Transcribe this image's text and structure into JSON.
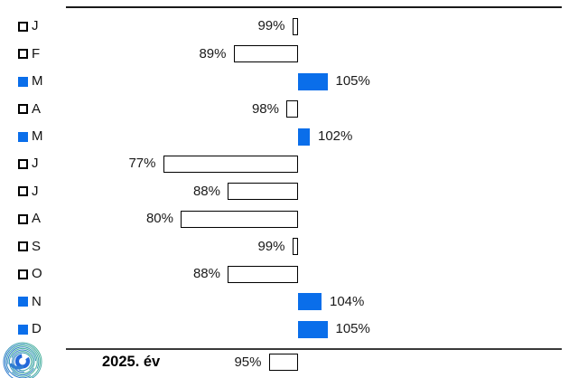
{
  "chart_data": {
    "type": "bar",
    "orientation": "horizontal",
    "baseline_value": 100,
    "unit": "%",
    "categories": [
      "J",
      "F",
      "M",
      "A",
      "M",
      "J",
      "J",
      "A",
      "S",
      "O",
      "N",
      "D"
    ],
    "values": [
      99,
      89,
      105,
      98,
      102,
      77,
      88,
      80,
      99,
      88,
      104,
      105
    ],
    "labels": [
      "99%",
      "89%",
      "105%",
      "98%",
      "102%",
      "77%",
      "88%",
      "80%",
      "99%",
      "88%",
      "104%",
      "105%"
    ],
    "summary": {
      "label": "2025. év",
      "value": 95,
      "value_label": "95%"
    },
    "axis_range_pct": [
      77,
      105
    ],
    "grid": false,
    "legend_position": "none",
    "marker_meaning": {
      "filled_blue_square": "month at or above 100%",
      "white_outlined_square": "month below 100%"
    },
    "colors": {
      "above_baseline": "#0a6eea",
      "below_baseline_fill": "#ffffff",
      "bar_border": "#000000",
      "text": "#1a1a1a",
      "top_rule": "#1a1a1a",
      "separator_rule": "#3a3a3a",
      "logo_teal": "#52bb90",
      "logo_blue": "#2e6fd8"
    }
  },
  "logo": {
    "icon": "spiral-swirl-logo"
  }
}
